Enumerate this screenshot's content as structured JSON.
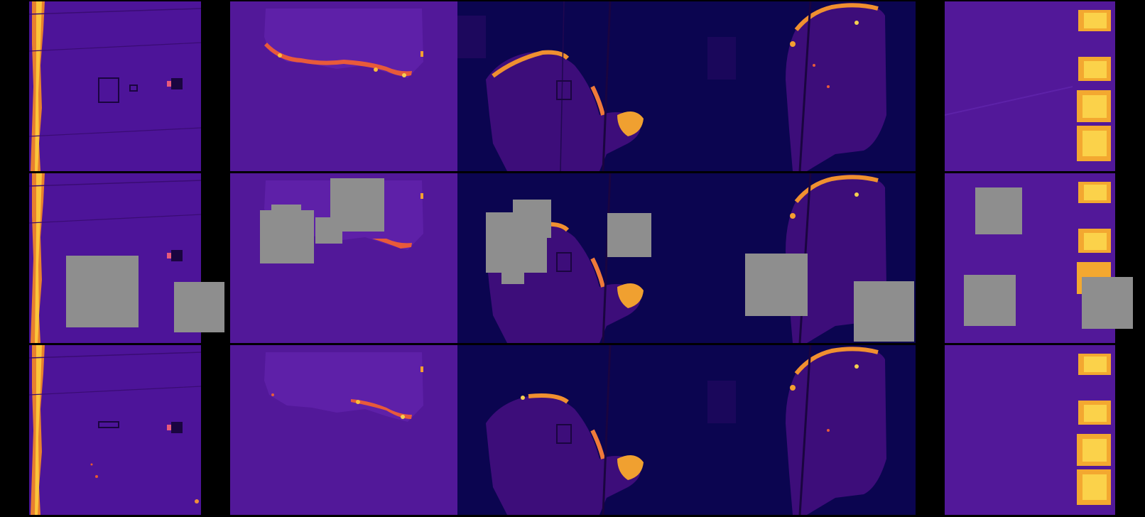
{
  "figure": {
    "rows": [
      "original",
      "masked",
      "reconstructed"
    ],
    "columns": 5,
    "colormap": [
      "#0b0550",
      "#3d0a8a",
      "#6a15a7",
      "#b62f8c",
      "#ef6b34",
      "#fdb42f",
      "#f4f77e"
    ],
    "mask_color": "#8e8e8e",
    "background": "#000000"
  }
}
